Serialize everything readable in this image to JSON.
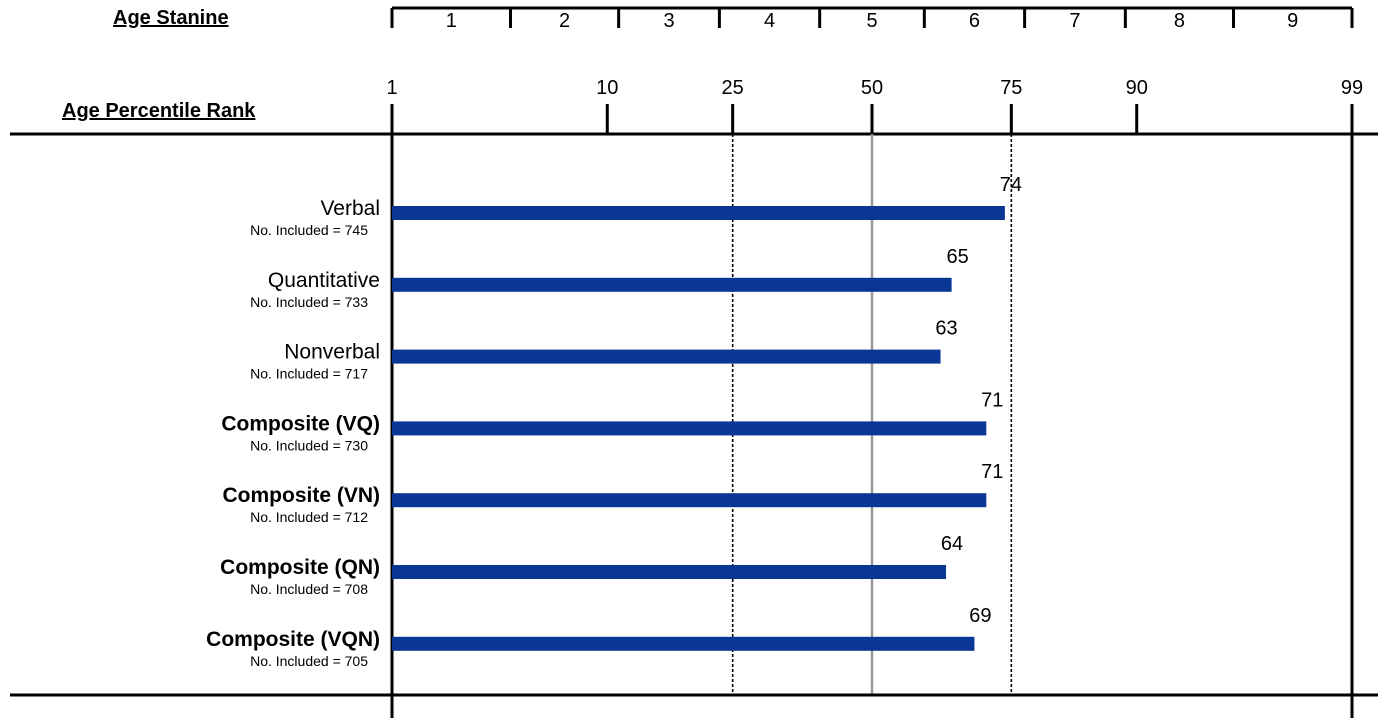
{
  "header": {
    "stanine_title": "Age Stanine",
    "percentile_title": "Age Percentile Rank"
  },
  "chart_data": {
    "type": "bar",
    "orientation": "horizontal",
    "scale": "normal-curve percentile",
    "stanine_labels": [
      "1",
      "2",
      "3",
      "4",
      "5",
      "6",
      "7",
      "8",
      "9"
    ],
    "percentile_ticks": [
      1,
      10,
      25,
      50,
      75,
      90,
      99
    ],
    "reference_lines": [
      {
        "value": 25,
        "style": "dotted"
      },
      {
        "value": 50,
        "style": "solid-gray"
      },
      {
        "value": 75,
        "style": "dotted"
      }
    ],
    "bar_color": "#0a3696",
    "categories": [
      {
        "name": "Verbal",
        "bold": false,
        "n_label": "No. Included = 745",
        "value": 74
      },
      {
        "name": "Quantitative",
        "bold": false,
        "n_label": "No. Included = 733",
        "value": 65
      },
      {
        "name": "Nonverbal",
        "bold": false,
        "n_label": "No. Included = 717",
        "value": 63
      },
      {
        "name": "Composite (VQ)",
        "bold": true,
        "n_label": "No. Included = 730",
        "value": 71
      },
      {
        "name": "Composite (VN)",
        "bold": true,
        "n_label": "No. Included = 712",
        "value": 71
      },
      {
        "name": "Composite (QN)",
        "bold": true,
        "n_label": "No. Included = 708",
        "value": 64
      },
      {
        "name": "Composite (VQN)",
        "bold": true,
        "n_label": "No. Included = 705",
        "value": 69
      }
    ]
  }
}
